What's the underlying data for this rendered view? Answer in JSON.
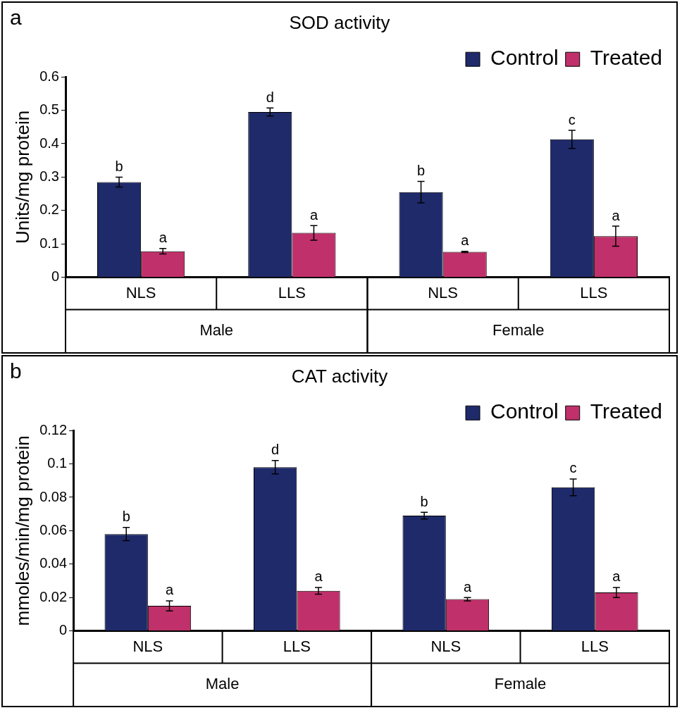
{
  "chart_data": [
    {
      "type": "bar",
      "title": "SOD activity",
      "ylabel": "Units/mg protein",
      "categories": [
        "NLS",
        "LLS",
        "NLS",
        "LLS"
      ],
      "series": [
        {
          "name": "Control",
          "color": "#1f2a6b",
          "values": [
            0.285,
            0.495,
            0.255,
            0.413
          ],
          "errors": [
            0.015,
            0.012,
            0.032,
            0.027
          ],
          "value_labels": [
            "b",
            "d",
            "b",
            "c"
          ]
        },
        {
          "name": "Treated",
          "color": "#c0306a",
          "values": [
            0.078,
            0.133,
            0.076,
            0.123
          ],
          "errors": [
            0.008,
            0.022,
            0.002,
            0.03
          ],
          "value_labels": [
            "a",
            "a",
            "a",
            "a"
          ]
        }
      ],
      "ylim": [
        0,
        0.6
      ],
      "yticks": [
        0,
        0.1,
        0.2,
        0.3,
        0.4,
        0.5,
        0.6
      ],
      "grid": false,
      "legend": "top right",
      "annotations": [
        "a",
        "Male",
        "Female"
      ]
    },
    {
      "type": "bar",
      "title": "CAT activity",
      "ylabel": "mmoles/min/mg protein",
      "categories": [
        "NLS",
        "LLS",
        "NLS",
        "LLS"
      ],
      "series": [
        {
          "name": "Control",
          "color": "#1f2a6b",
          "values": [
            0.058,
            0.098,
            0.069,
            0.086
          ],
          "errors": [
            0.004,
            0.004,
            0.002,
            0.005
          ],
          "value_labels": [
            "b",
            "d",
            "b",
            "c"
          ]
        },
        {
          "name": "Treated",
          "color": "#c0306a",
          "values": [
            0.015,
            0.024,
            0.019,
            0.023
          ],
          "errors": [
            0.003,
            0.002,
            0.001,
            0.003
          ],
          "value_labels": [
            "a",
            "a",
            "a",
            "a"
          ]
        }
      ],
      "ylim": [
        0,
        0.12
      ],
      "yticks": [
        0,
        0.02,
        0.04,
        0.06,
        0.08,
        0.1,
        0.12
      ],
      "grid": false,
      "legend": "top right",
      "annotations": [
        "b",
        "Male",
        "Female"
      ]
    }
  ]
}
